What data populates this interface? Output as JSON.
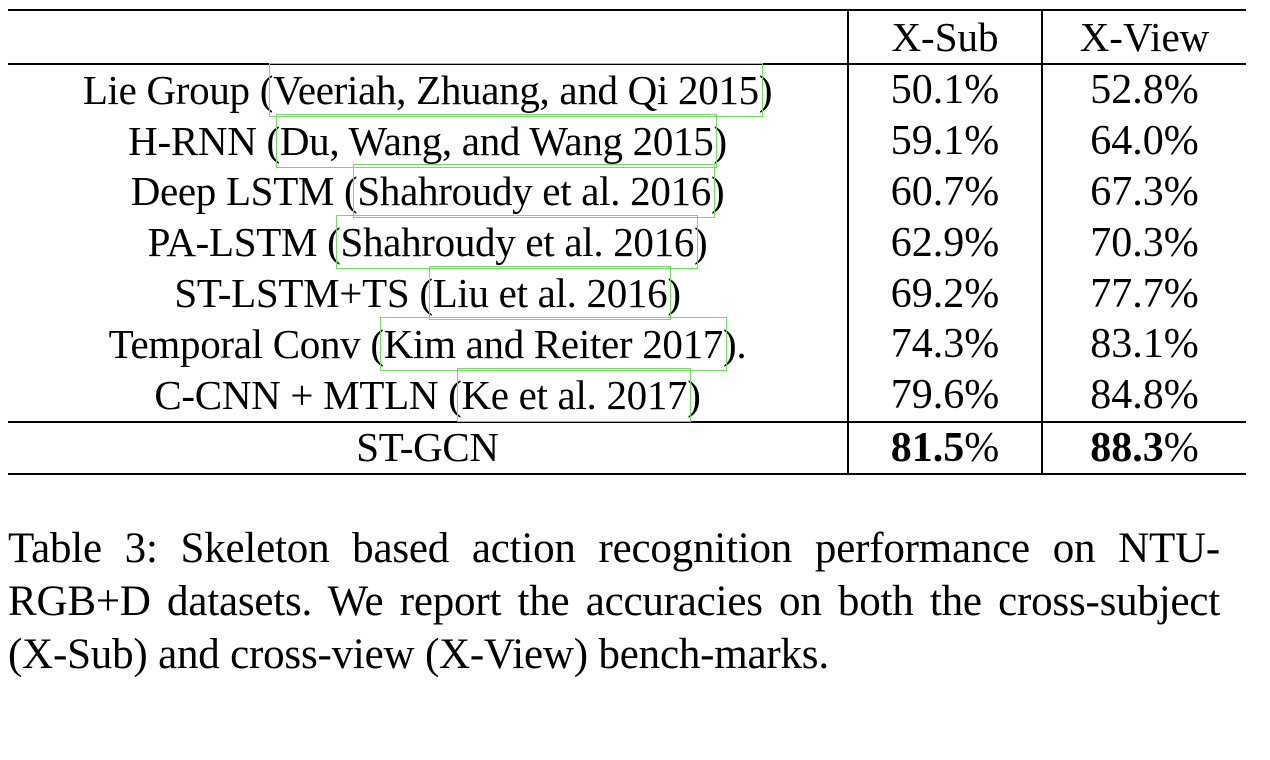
{
  "table": {
    "columns": [
      "",
      "X-Sub",
      "X-View"
    ],
    "rows": [
      {
        "method": "Lie Group",
        "open": " (",
        "citation": "Veeriah, Zhuang, and Qi 2015",
        "close": ")",
        "x_sub": "50.1%",
        "x_view": "52.8%"
      },
      {
        "method": "H-RNN",
        "open": " (",
        "citation": "Du, Wang, and Wang 2015",
        "close": ")",
        "x_sub": "59.1%",
        "x_view": "64.0%"
      },
      {
        "method": "Deep LSTM",
        "open": " (",
        "citation": "Shahroudy et al. 2016",
        "close": ")",
        "x_sub": "60.7%",
        "x_view": "67.3%"
      },
      {
        "method": "PA-LSTM",
        "open": " (",
        "citation": "Shahroudy et al. 2016",
        "close": ")",
        "x_sub": "62.9%",
        "x_view": "70.3%"
      },
      {
        "method": "ST-LSTM+TS",
        "open": " (",
        "citation": "Liu et al. 2016",
        "close": ")",
        "x_sub": "69.2%",
        "x_view": "77.7%"
      },
      {
        "method": "Temporal Conv",
        "open": " (",
        "citation": "Kim and Reiter 2017",
        "close": ").",
        "x_sub": "74.3%",
        "x_view": "83.1%"
      },
      {
        "method": "C-CNN + MTLN",
        "open": " (",
        "citation": "Ke et al. 2017",
        "close": ")",
        "x_sub": "79.6%",
        "x_view": "84.8%"
      }
    ],
    "final_row": {
      "method": "ST-GCN",
      "x_sub": "81.5%",
      "x_view": "88.3%"
    }
  },
  "caption": "Table 3: Skeleton based action recognition performance on NTU-RGB+D datasets. We report the accuracies on both the cross-subject (X-Sub) and cross-view (X-View) bench-marks.",
  "colors": {
    "text": "#000000",
    "rules": "#000000",
    "citation_box": "#7bd86a",
    "background": "#ffffff"
  }
}
